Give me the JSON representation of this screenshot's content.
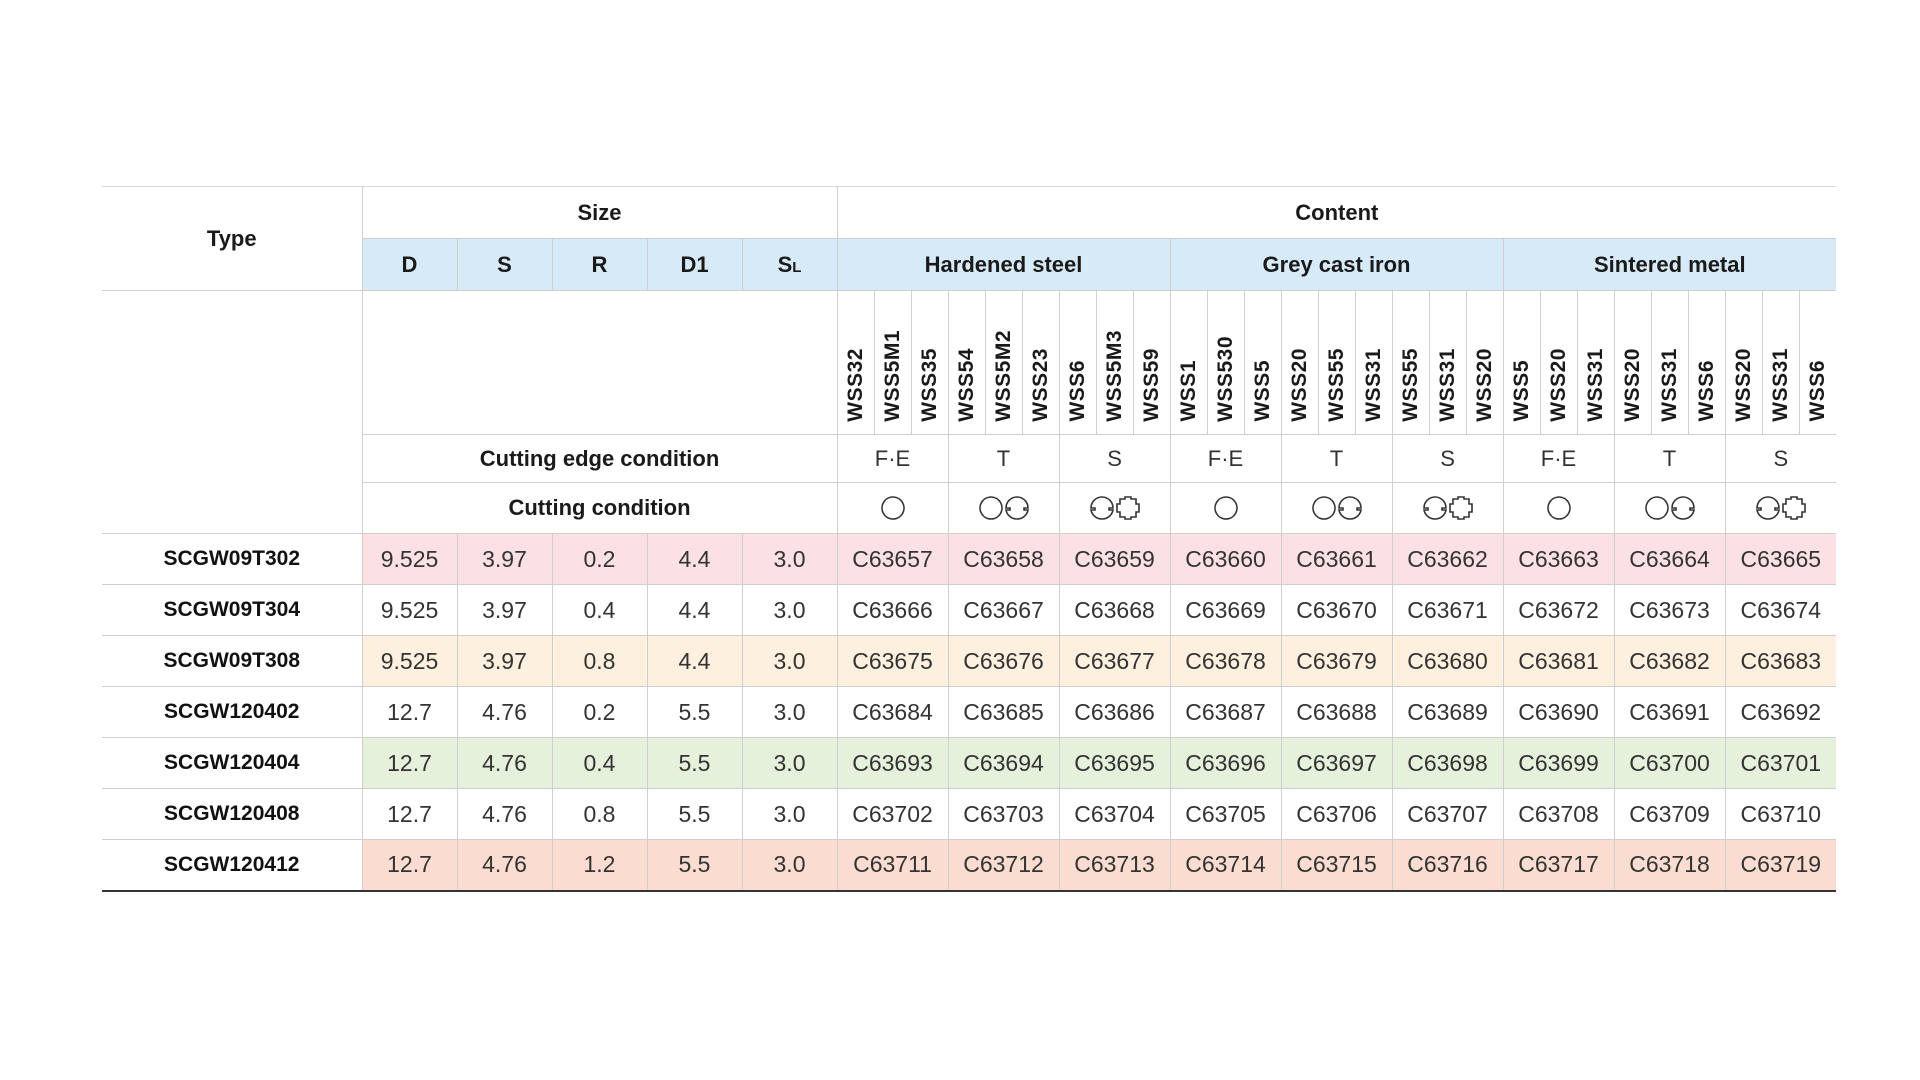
{
  "header": {
    "type_label": "Type",
    "size_label": "Size",
    "content_label": "Content",
    "size_cols": [
      {
        "main": "D",
        "sub": ""
      },
      {
        "main": "S",
        "sub": ""
      },
      {
        "main": "R",
        "sub": ""
      },
      {
        "main": "D1",
        "sub": ""
      },
      {
        "main": "S",
        "sub": "L"
      }
    ],
    "material_groups": [
      "Hardened steel",
      "Grey cast iron",
      "Sintered metal"
    ],
    "grade_codes": [
      "WSS32",
      "WSS5M1",
      "WSS35",
      "WSS54",
      "WSS5M2",
      "WSS23",
      "WSS6",
      "WSS5M3",
      "WSS59",
      "WSS1",
      "WSS530",
      "WSS5",
      "WSS20",
      "WSS55",
      "WSS31",
      "WSS55",
      "WSS31",
      "WSS20",
      "WSS5",
      "WSS20",
      "WSS31",
      "WSS20",
      "WSS31",
      "WSS6",
      "WSS20",
      "WSS31",
      "WSS6"
    ],
    "cutting_edge_label": "Cutting edge condition",
    "cutting_edge_values": [
      "F·E",
      "T",
      "S",
      "F·E",
      "T",
      "S",
      "F·E",
      "T",
      "S"
    ],
    "cutting_condition_label": "Cutting condition",
    "cutting_condition_icons": [
      [
        "circle-icon"
      ],
      [
        "circle-icon",
        "notched-circle-icon"
      ],
      [
        "notched-circle-icon",
        "double-notched-icon"
      ],
      [
        "circle-icon"
      ],
      [
        "circle-icon",
        "notched-circle-icon"
      ],
      [
        "notched-circle-icon",
        "double-notched-icon"
      ],
      [
        "circle-icon"
      ],
      [
        "circle-icon",
        "notched-circle-icon"
      ],
      [
        "notched-circle-icon",
        "double-notched-icon"
      ]
    ]
  },
  "rows": [
    {
      "type": "SCGW09T302",
      "size": [
        "9.525",
        "3.97",
        "0.2",
        "4.4",
        "3.0"
      ],
      "codes": [
        "C63657",
        "C63658",
        "C63659",
        "C63660",
        "C63661",
        "C63662",
        "C63663",
        "C63664",
        "C63665"
      ],
      "tint": "pink"
    },
    {
      "type": "SCGW09T304",
      "size": [
        "9.525",
        "3.97",
        "0.4",
        "4.4",
        "3.0"
      ],
      "codes": [
        "C63666",
        "C63667",
        "C63668",
        "C63669",
        "C63670",
        "C63671",
        "C63672",
        "C63673",
        "C63674"
      ],
      "tint": "none"
    },
    {
      "type": "SCGW09T308",
      "size": [
        "9.525",
        "3.97",
        "0.8",
        "4.4",
        "3.0"
      ],
      "codes": [
        "C63675",
        "C63676",
        "C63677",
        "C63678",
        "C63679",
        "C63680",
        "C63681",
        "C63682",
        "C63683"
      ],
      "tint": "cream"
    },
    {
      "type": "SCGW120402",
      "size": [
        "12.7",
        "4.76",
        "0.2",
        "5.5",
        "3.0"
      ],
      "codes": [
        "C63684",
        "C63685",
        "C63686",
        "C63687",
        "C63688",
        "C63689",
        "C63690",
        "C63691",
        "C63692"
      ],
      "tint": "none"
    },
    {
      "type": "SCGW120404",
      "size": [
        "12.7",
        "4.76",
        "0.4",
        "5.5",
        "3.0"
      ],
      "codes": [
        "C63693",
        "C63694",
        "C63695",
        "C63696",
        "C63697",
        "C63698",
        "C63699",
        "C63700",
        "C63701"
      ],
      "tint": "green"
    },
    {
      "type": "SCGW120408",
      "size": [
        "12.7",
        "4.76",
        "0.8",
        "5.5",
        "3.0"
      ],
      "codes": [
        "C63702",
        "C63703",
        "C63704",
        "C63705",
        "C63706",
        "C63707",
        "C63708",
        "C63709",
        "C63710"
      ],
      "tint": "none"
    },
    {
      "type": "SCGW120412",
      "size": [
        "12.7",
        "4.76",
        "1.2",
        "5.5",
        "3.0"
      ],
      "codes": [
        "C63711",
        "C63712",
        "C63713",
        "C63714",
        "C63715",
        "C63716",
        "C63717",
        "C63718",
        "C63719"
      ],
      "tint": "salmon"
    }
  ],
  "colors": {
    "header_blue": "#d6eaf8",
    "pink": "#fbe1e4",
    "cream": "#fdf0de",
    "green": "#e6f1dc",
    "salmon": "#fadcd0"
  }
}
